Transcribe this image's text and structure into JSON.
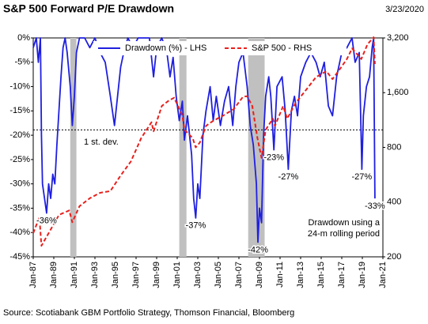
{
  "chart_data": {
    "type": "line",
    "title": "S&P 500 Forward P/E Drawdown",
    "date": "3/23/2020",
    "source": "Source: Scotiabank GBM Portfolio Strategy, Thomson Financial, Bloomberg",
    "xlim": [
      1987,
      2021
    ],
    "xticks": [
      {
        "value": 1987,
        "label": "Jan-87"
      },
      {
        "value": 1989,
        "label": "Jan-89"
      },
      {
        "value": 1991,
        "label": "Jan-91"
      },
      {
        "value": 1993,
        "label": "Jan-93"
      },
      {
        "value": 1995,
        "label": "Jan-95"
      },
      {
        "value": 1997,
        "label": "Jan-97"
      },
      {
        "value": 1999,
        "label": "Jan-99"
      },
      {
        "value": 2001,
        "label": "Jan-01"
      },
      {
        "value": 2003,
        "label": "Jan-03"
      },
      {
        "value": 2005,
        "label": "Jan-05"
      },
      {
        "value": 2007,
        "label": "Jan-07"
      },
      {
        "value": 2009,
        "label": "Jan-09"
      },
      {
        "value": 2011,
        "label": "Jan-11"
      },
      {
        "value": 2013,
        "label": "Jan-13"
      },
      {
        "value": 2015,
        "label": "Jan-15"
      },
      {
        "value": 2017,
        "label": "Jan-17"
      },
      {
        "value": 2019,
        "label": "Jan-19"
      },
      {
        "value": 2021,
        "label": "Jan-21"
      }
    ],
    "ylim": [
      -45,
      0
    ],
    "yticks": [
      {
        "value": 0,
        "label": "0%"
      },
      {
        "value": -5,
        "label": "-5%"
      },
      {
        "value": -10,
        "label": "-10%"
      },
      {
        "value": -15,
        "label": "-15%"
      },
      {
        "value": -20,
        "label": "-20%"
      },
      {
        "value": -25,
        "label": "-25%"
      },
      {
        "value": -30,
        "label": "-30%"
      },
      {
        "value": -35,
        "label": "-35%"
      },
      {
        "value": -40,
        "label": "-40%"
      },
      {
        "value": -45,
        "label": "-45%"
      }
    ],
    "y2lim": [
      200,
      3200
    ],
    "y2_log": true,
    "y2ticks": [
      200,
      400,
      800,
      {
        "value": 1600,
        "label": "1,600"
      },
      {
        "value": 3200,
        "label": "3,200"
      }
    ],
    "shaded": [
      [
        1990.6,
        1991.2
      ],
      [
        2001.2,
        2001.9
      ],
      [
        2007.9,
        2009.5
      ]
    ],
    "shade_color": "#c0c0c0",
    "reference_line": {
      "label": "1 st. dev.",
      "value": -18.9
    },
    "series": [
      {
        "name": "Drawdown (%) - LHS",
        "color": "#1f1fe0",
        "dash": false,
        "x": [
          1987.0,
          1987.3,
          1987.5,
          1987.7,
          1987.8,
          1987.9,
          1988.1,
          1988.3,
          1988.5,
          1988.7,
          1988.9,
          1989.1,
          1989.3,
          1989.5,
          1989.7,
          1989.9,
          1990.1,
          1990.3,
          1990.6,
          1990.8,
          1991.0,
          1991.2,
          1991.5,
          1992.0,
          1992.5,
          1993.0,
          1993.5,
          1994.0,
          1994.5,
          1994.9,
          1995.2,
          1995.5,
          1995.8,
          1996.2,
          1996.7,
          1997.2,
          1997.8,
          1998.3,
          1998.7,
          1999.0,
          1999.5,
          2000.0,
          2000.3,
          2000.6,
          2000.9,
          2001.2,
          2001.5,
          2001.7,
          2002.0,
          2002.4,
          2002.6,
          2002.8,
          2003.0,
          2003.2,
          2003.5,
          2003.8,
          2004.2,
          2004.5,
          2004.8,
          2005.2,
          2005.6,
          2006.0,
          2006.4,
          2006.7,
          2007.0,
          2007.4,
          2007.8,
          2008.1,
          2008.4,
          2008.7,
          2008.85,
          2009.0,
          2009.2,
          2009.4,
          2009.6,
          2009.9,
          2010.1,
          2010.4,
          2010.7,
          2011.2,
          2011.5,
          2011.8,
          2012.1,
          2012.4,
          2012.7,
          2013.0,
          2013.5,
          2014.0,
          2014.5,
          2014.9,
          2015.3,
          2015.7,
          2016.1,
          2016.5,
          2017.0,
          2017.5,
          2018.0,
          2018.3,
          2018.7,
          2018.95,
          2019.1,
          2019.4,
          2019.7,
          2019.95,
          2020.1,
          2020.22
        ],
        "values": [
          -2,
          0,
          -5,
          0,
          -20,
          -30,
          -33,
          -36,
          -30,
          -33,
          -28,
          -30,
          -22,
          -15,
          -8,
          -2,
          0,
          -3,
          -10,
          -18,
          -12,
          -3,
          0,
          0,
          -2,
          0,
          -3,
          -5,
          -12,
          -18,
          -12,
          -6,
          -3,
          0,
          -2,
          0,
          0,
          0,
          -8,
          -2,
          0,
          -3,
          -8,
          -4,
          -12,
          -17,
          -13,
          -21,
          -16,
          -24,
          -33,
          -37,
          -30,
          -33,
          -20,
          -15,
          -10,
          -17,
          -12,
          -18,
          -13,
          -10,
          -18,
          -10,
          -5,
          -3,
          -10,
          -18,
          -22,
          -30,
          -42,
          -35,
          -38,
          -20,
          -12,
          -8,
          -12,
          -23,
          -10,
          -8,
          -15,
          -27,
          -15,
          -12,
          -16,
          -8,
          -5,
          -3,
          -5,
          -8,
          -5,
          -14,
          -16,
          -8,
          -3,
          -2,
          0,
          -5,
          -3,
          -27,
          -16,
          -10,
          -8,
          -2,
          0,
          -33
        ]
      },
      {
        "name": "S&P 500 - RHS",
        "color": "#e8201c",
        "dash": true,
        "axis": "y2",
        "x": [
          1987.0,
          1987.6,
          1987.8,
          1988.5,
          1989.5,
          1990.5,
          1990.8,
          1991.5,
          1992.5,
          1993.5,
          1994.5,
          1995.5,
          1996.5,
          1997.5,
          1998.5,
          1998.7,
          1999.5,
          2000.2,
          2000.7,
          2001.5,
          2001.7,
          2002.5,
          2002.8,
          2003.2,
          2003.8,
          2004.5,
          2005.5,
          2006.5,
          2007.4,
          2007.8,
          2008.3,
          2008.8,
          2009.2,
          2009.6,
          2010.3,
          2010.5,
          2011.3,
          2011.7,
          2012.5,
          2013.5,
          2014.5,
          2015.5,
          2016.1,
          2016.8,
          2017.5,
          2018.0,
          2018.9,
          2019.5,
          2020.1,
          2020.22
        ],
        "values": [
          270,
          330,
          230,
          270,
          340,
          360,
          310,
          380,
          420,
          450,
          460,
          560,
          670,
          900,
          1100,
          980,
          1350,
          1450,
          1500,
          1200,
          1000,
          900,
          800,
          850,
          1050,
          1120,
          1200,
          1300,
          1520,
          1530,
          1350,
          900,
          700,
          1000,
          1150,
          1050,
          1350,
          1150,
          1400,
          1650,
          1950,
          2100,
          1900,
          2150,
          2450,
          2800,
          2450,
          2950,
          3230,
          2300
        ]
      }
    ],
    "legend": "top",
    "annotations": [
      {
        "text": "-36%",
        "x": 1988.3,
        "y": -36
      },
      {
        "text": "-37%",
        "x": 2002.8,
        "y": -37
      },
      {
        "text": "-42%",
        "x": 2008.85,
        "y": -42
      },
      {
        "text": "-23%",
        "x": 2010.4,
        "y": -23
      },
      {
        "text": "-27%",
        "x": 2011.8,
        "y": -27
      },
      {
        "text": "-27%",
        "x": 2018.95,
        "y": -27
      },
      {
        "text": "-33%",
        "x": 2020.22,
        "y": -33
      }
    ],
    "note": [
      "Drawdown using a",
      "24-m rolling period"
    ]
  }
}
